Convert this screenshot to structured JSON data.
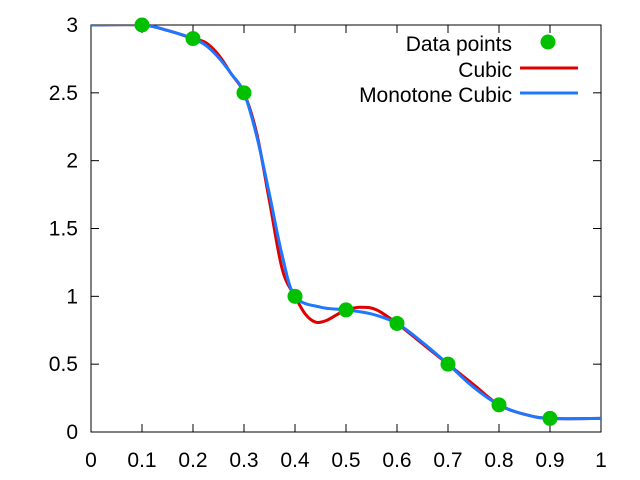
{
  "chart_data": {
    "type": "line",
    "title": "",
    "xlabel": "",
    "ylabel": "",
    "xlim": [
      0,
      1
    ],
    "ylim": [
      0,
      3
    ],
    "x_ticks": [
      "0",
      "0.1",
      "0.2",
      "0.3",
      "0.4",
      "0.5",
      "0.6",
      "0.7",
      "0.8",
      "0.9",
      "1"
    ],
    "y_ticks": [
      "0",
      "0.5",
      "1",
      "1.5",
      "2",
      "2.5",
      "3"
    ],
    "grid": false,
    "legend_position": "top-right",
    "series": [
      {
        "name": "Data points",
        "kind": "scatter",
        "color": "#00c000",
        "x": [
          0.1,
          0.2,
          0.3,
          0.4,
          0.5,
          0.6,
          0.7,
          0.8,
          0.9
        ],
        "y": [
          3.0,
          2.9,
          2.5,
          1.0,
          0.9,
          0.8,
          0.5,
          0.2,
          0.1
        ]
      },
      {
        "name": "Cubic",
        "kind": "line",
        "color": "#e00000",
        "x": [
          0.0,
          0.1,
          0.15,
          0.2,
          0.225,
          0.25,
          0.275,
          0.3,
          0.325,
          0.35,
          0.375,
          0.4,
          0.42,
          0.44,
          0.46,
          0.48,
          0.5,
          0.53,
          0.56,
          0.6,
          0.65,
          0.7,
          0.75,
          0.8,
          0.85,
          0.9,
          1.0
        ],
        "y": [
          3.0,
          3.0,
          2.96,
          2.9,
          2.87,
          2.78,
          2.64,
          2.5,
          2.2,
          1.7,
          1.2,
          1.0,
          0.87,
          0.81,
          0.82,
          0.86,
          0.9,
          0.92,
          0.9,
          0.8,
          0.65,
          0.5,
          0.35,
          0.2,
          0.13,
          0.1,
          0.1
        ]
      },
      {
        "name": "Monotone Cubic",
        "kind": "line",
        "color": "#1e78ff",
        "x": [
          0.0,
          0.1,
          0.15,
          0.2,
          0.225,
          0.25,
          0.275,
          0.3,
          0.325,
          0.35,
          0.375,
          0.4,
          0.45,
          0.5,
          0.55,
          0.6,
          0.65,
          0.7,
          0.75,
          0.8,
          0.85,
          0.9,
          1.0
        ],
        "y": [
          3.0,
          3.0,
          2.96,
          2.9,
          2.85,
          2.76,
          2.64,
          2.5,
          2.18,
          1.75,
          1.3,
          1.0,
          0.92,
          0.9,
          0.87,
          0.8,
          0.66,
          0.5,
          0.33,
          0.2,
          0.13,
          0.1,
          0.1
        ]
      }
    ]
  }
}
